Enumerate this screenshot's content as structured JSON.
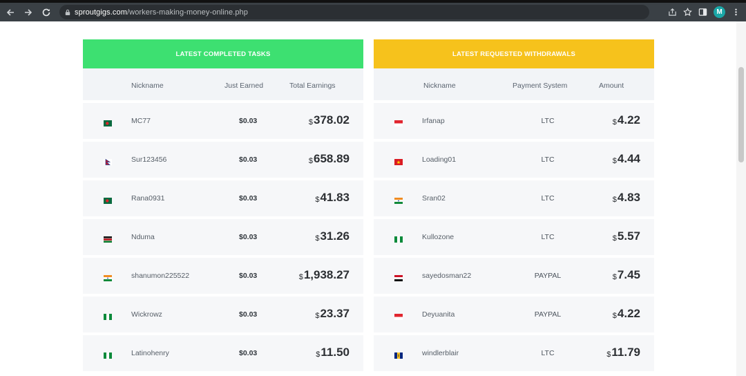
{
  "browser": {
    "url_domain": "sproutgigs.com",
    "url_path": "/workers-making-money-online.php",
    "avatar_letter": "M"
  },
  "tasks": {
    "title": "LATEST COMPLETED TASKS",
    "headers": {
      "nickname": "Nickname",
      "earned": "Just Earned",
      "total": "Total Earnings"
    },
    "rows": [
      {
        "flag": "bangladesh-flag-icon",
        "name": "MC77",
        "earned": "$0.03",
        "currency": "$",
        "total": "378.02"
      },
      {
        "flag": "nepal-flag-icon",
        "name": "Sur123456",
        "earned": "$0.03",
        "currency": "$",
        "total": "658.89"
      },
      {
        "flag": "bangladesh-flag-icon",
        "name": "Rana0931",
        "earned": "$0.03",
        "currency": "$",
        "total": "41.83"
      },
      {
        "flag": "kenya-flag-icon",
        "name": "Nduma",
        "earned": "$0.03",
        "currency": "$",
        "total": "31.26"
      },
      {
        "flag": "india-flag-icon",
        "name": "shanumon225522",
        "earned": "$0.03",
        "currency": "$",
        "total": "1,938.27"
      },
      {
        "flag": "nigeria-flag-icon",
        "name": "Wickrowz",
        "earned": "$0.03",
        "currency": "$",
        "total": "23.37"
      },
      {
        "flag": "nigeria-flag-icon",
        "name": "Latinohenry",
        "earned": "$0.03",
        "currency": "$",
        "total": "11.50"
      }
    ]
  },
  "withdrawals": {
    "title": "LATEST REQUESTED WITHDRAWALS",
    "headers": {
      "nickname": "Nickname",
      "system": "Payment System",
      "amount": "Amount"
    },
    "rows": [
      {
        "flag": "indonesia-flag-icon",
        "name": "Irfanap",
        "system": "LTC",
        "currency": "$",
        "amount": "4.22"
      },
      {
        "flag": "vietnam-flag-icon",
        "name": "Loading01",
        "system": "LTC",
        "currency": "$",
        "amount": "4.44"
      },
      {
        "flag": "india-flag-icon",
        "name": "Sran02",
        "system": "LTC",
        "currency": "$",
        "amount": "4.83"
      },
      {
        "flag": "nigeria-flag-icon",
        "name": "Kullozone",
        "system": "LTC",
        "currency": "$",
        "amount": "5.57"
      },
      {
        "flag": "egypt-flag-icon",
        "name": "sayedosman22",
        "system": "PAYPAL",
        "currency": "$",
        "amount": "7.45"
      },
      {
        "flag": "indonesia-flag-icon",
        "name": "Deyuanita",
        "system": "PAYPAL",
        "currency": "$",
        "amount": "4.22"
      },
      {
        "flag": "barbados-flag-icon",
        "name": "windlerblair",
        "system": "LTC",
        "currency": "$",
        "amount": "11.79"
      }
    ]
  },
  "colors": {
    "tasks_header": "#3de071",
    "withdrawals_header": "#f6c21c",
    "toolbar": "#3a4045"
  }
}
